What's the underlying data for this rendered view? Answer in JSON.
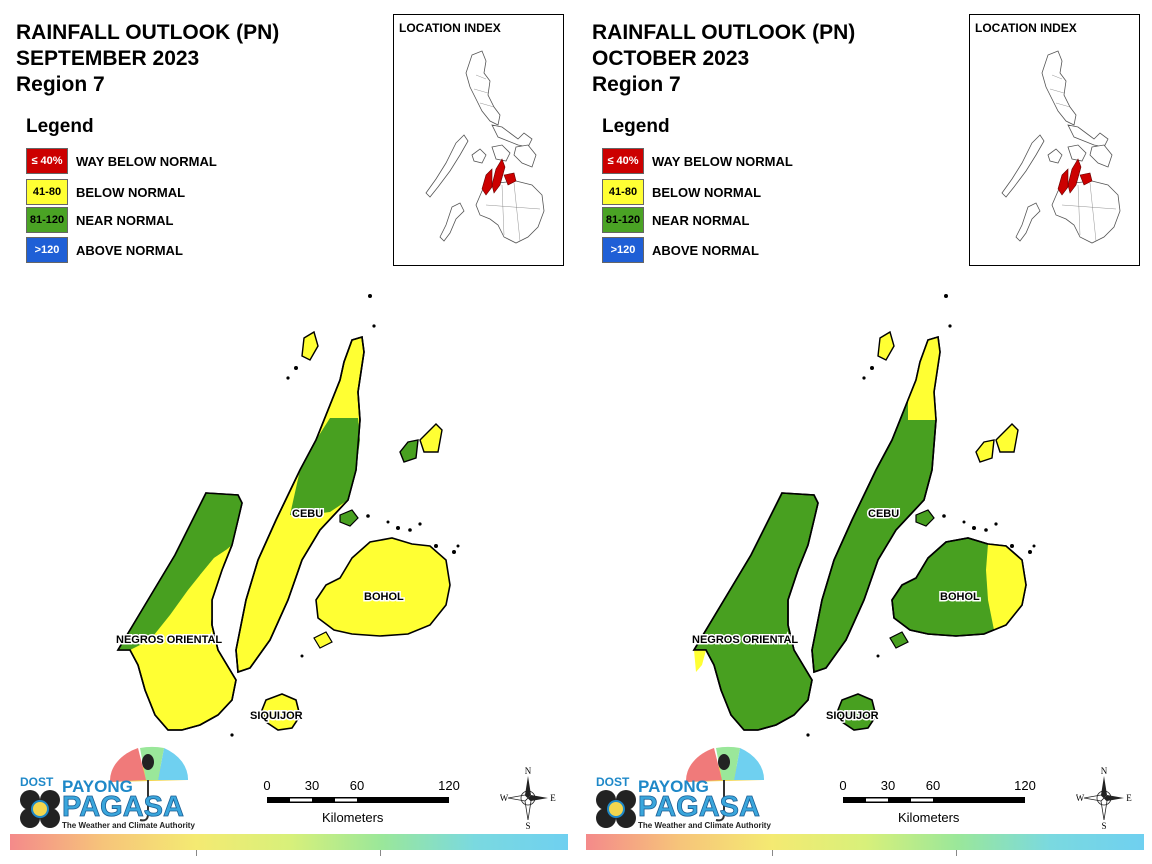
{
  "colors": {
    "way_below": "#cc0000",
    "below": "#ffff33",
    "near": "#4aa324",
    "above": "#1f5fd6",
    "near_map": "#48a020",
    "below_map": "#ffff33"
  },
  "panels": [
    {
      "title_line1": "RAINFALL OUTLOOK (PN)",
      "title_line2": "SEPTEMBER 2023",
      "title_line3": "Region 7",
      "legend_title": "Legend",
      "legend": [
        {
          "range": "≤ 40%",
          "label": "WAY BELOW NORMAL"
        },
        {
          "range": "41-80",
          "label": "BELOW NORMAL"
        },
        {
          "range": "81-120",
          "label": "NEAR NORMAL"
        },
        {
          "range": ">120",
          "label": "ABOVE NORMAL"
        }
      ],
      "location_index": "LOCATION INDEX",
      "places": {
        "cebu": "CEBU",
        "bohol": "BOHOL",
        "negros": "NEGROS ORIENTAL",
        "siquijor": "SIQUIJOR"
      },
      "outlook": {
        "cebu": "mostly below normal, near normal in central-north",
        "negros": "mostly below normal, near normal in northwest",
        "bohol": "below normal",
        "siquijor": "below normal"
      },
      "scale": {
        "ticks": [
          "0",
          "30",
          "60",
          "120"
        ],
        "unit": "Kilometers"
      },
      "compass": {
        "n": "N",
        "s": "S",
        "e": "E",
        "w": "W"
      },
      "logo": {
        "dost": "DOST",
        "payong": "PAYONG",
        "pagasa": "PAGASA",
        "tagline": "The Weather and Climate Authority"
      }
    },
    {
      "title_line1": "RAINFALL OUTLOOK (PN)",
      "title_line2": "OCTOBER 2023",
      "title_line3": "Region 7",
      "legend_title": "Legend",
      "legend": [
        {
          "range": "≤ 40%",
          "label": "WAY BELOW NORMAL"
        },
        {
          "range": "41-80",
          "label": "BELOW NORMAL"
        },
        {
          "range": "81-120",
          "label": "NEAR NORMAL"
        },
        {
          "range": ">120",
          "label": "ABOVE NORMAL"
        }
      ],
      "location_index": "LOCATION INDEX",
      "places": {
        "cebu": "CEBU",
        "bohol": "BOHOL",
        "negros": "NEGROS ORIENTAL",
        "siquijor": "SIQUIJOR"
      },
      "outlook": {
        "cebu": "mostly near normal, below normal in north",
        "negros": "near normal",
        "bohol": "near normal, below normal in east",
        "siquijor": "near normal"
      },
      "scale": {
        "ticks": [
          "0",
          "30",
          "60",
          "120"
        ],
        "unit": "Kilometers"
      },
      "compass": {
        "n": "N",
        "s": "S",
        "e": "E",
        "w": "W"
      },
      "logo": {
        "dost": "DOST",
        "payong": "PAYONG",
        "pagasa": "PAGASA",
        "tagline": "The Weather and Climate Authority"
      }
    }
  ]
}
